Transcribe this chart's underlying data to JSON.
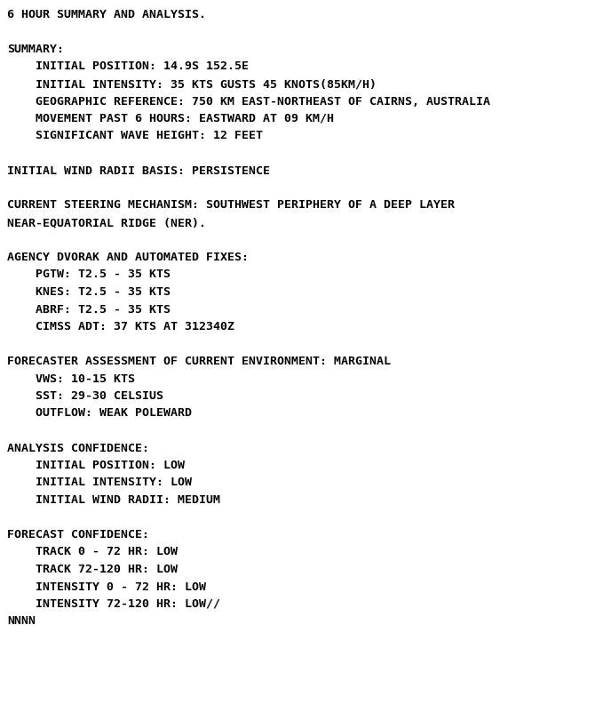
{
  "bg_color": "#ffffff",
  "text_color": "#000000",
  "font_family": "DejaVu Sans Mono",
  "font_size": 9.5,
  "fig_width": 6.79,
  "fig_height": 8.02,
  "dpi": 100,
  "lines": [
    "6 HOUR SUMMARY AND ANALYSIS.",
    "",
    "SUMMARY:",
    "    INITIAL POSITION: 14.9S 152.5E",
    "    INITIAL INTENSITY: 35 KTS GUSTS 45 KNOTS(85KM/H)",
    "    GEOGRAPHIC REFERENCE: 750 KM EAST-NORTHEAST OF CAIRNS, AUSTRALIA",
    "    MOVEMENT PAST 6 HOURS: EASTWARD AT 09 KM/H",
    "    SIGNIFICANT WAVE HEIGHT: 12 FEET",
    "",
    "INITIAL WIND RADII BASIS: PERSISTENCE",
    "",
    "CURRENT STEERING MECHANISM: SOUTHWEST PERIPHERY OF A DEEP LAYER",
    "NEAR-EQUATORIAL RIDGE (NER).",
    "",
    "AGENCY DVORAK AND AUTOMATED FIXES:",
    "    PGTW: T2.5 - 35 KTS",
    "    KNES: T2.5 - 35 KTS",
    "    ABRF: T2.5 - 35 KTS",
    "    CIMSS ADT: 37 KTS AT 312340Z",
    "",
    "FORECASTER ASSESSMENT OF CURRENT ENVIRONMENT: MARGINAL",
    "    VWS: 10-15 KTS",
    "    SST: 29-30 CELSIUS",
    "    OUTFLOW: WEAK POLEWARD",
    "",
    "ANALYSIS CONFIDENCE:",
    "    INITIAL POSITION: LOW",
    "    INITIAL INTENSITY: LOW",
    "    INITIAL WIND RADII: MEDIUM",
    "",
    "FORECAST CONFIDENCE:",
    "    TRACK 0 - 72 HR: LOW",
    "    TRACK 72-120 HR: LOW",
    "    INTENSITY 0 - 72 HR: LOW",
    "    INTENSITY 72-120 HR: LOW//",
    "NNNN"
  ]
}
